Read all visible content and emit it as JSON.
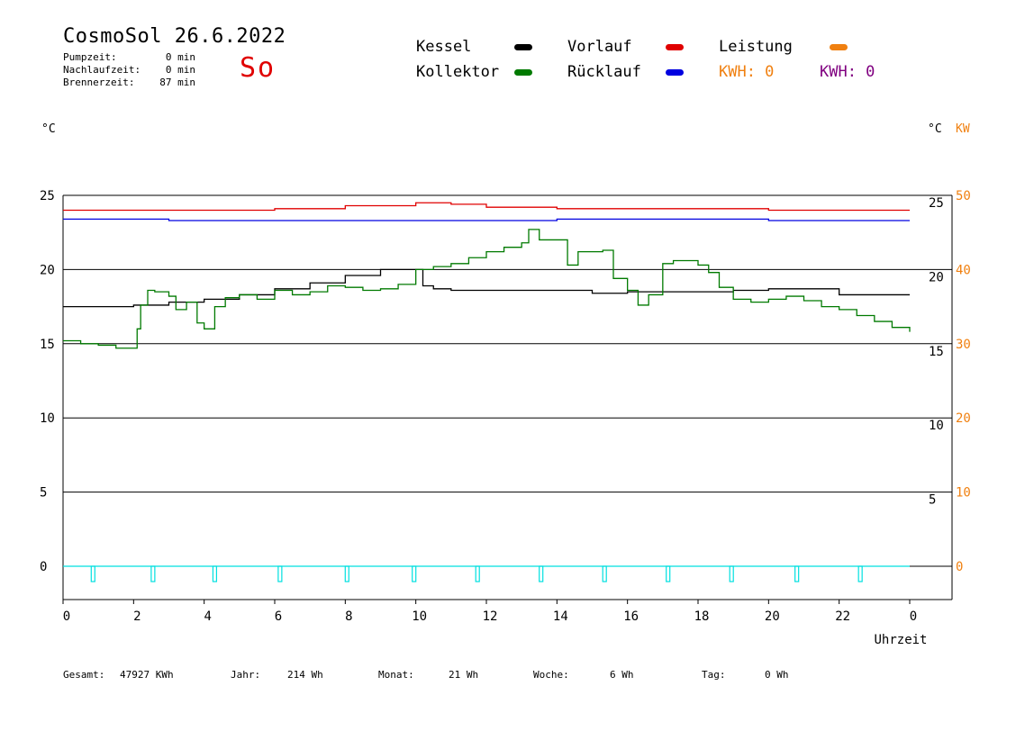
{
  "header": {
    "title": "CosmoSol 26.6.2022",
    "day": "So",
    "stats": [
      {
        "label": "Pumpzeit:",
        "value": "0 min"
      },
      {
        "label": "Nachlaufzeit:",
        "value": "0 min"
      },
      {
        "label": "Brennerzeit:",
        "value": "87 min"
      }
    ]
  },
  "legend": {
    "kessel": "Kessel",
    "kollektor": "Kollektor",
    "vorlauf": "Vorlauf",
    "ruecklauf": "Rücklauf",
    "leistung": "Leistung",
    "kwh1": "KWH: 0",
    "kwh2": "KWH: 0"
  },
  "units": {
    "left": "°C",
    "right": "°C",
    "right_kw": "KW"
  },
  "footer": {
    "gesamt_label": "Gesamt:",
    "gesamt_value": "47927 KWh",
    "jahr_label": "Jahr:",
    "jahr_value": "214 Wh",
    "monat_label": "Monat:",
    "monat_value": "21 Wh",
    "woche_label": "Woche:",
    "woche_value": "6 Wh",
    "tag_label": "Tag:",
    "tag_value": "0 Wh"
  },
  "colors": {
    "kessel": "#000000",
    "kollektor": "#007a00",
    "vorlauf": "#e00000",
    "ruecklauf": "#0000e0",
    "leistung": "#f08010",
    "kwh2": "#800080",
    "pump": "#00e0e0"
  },
  "chart_data": {
    "type": "line",
    "xlabel": "Uhrzeit",
    "x_ticks": [
      "0",
      "2",
      "4",
      "6",
      "8",
      "10",
      "12",
      "14",
      "16",
      "18",
      "20",
      "22",
      "0"
    ],
    "xlim": [
      0,
      24
    ],
    "ylim": [
      -3,
      26
    ],
    "y_ticks_left": [
      0,
      5,
      10,
      15,
      20,
      25
    ],
    "y_ticks_right": [
      5,
      10,
      15,
      20,
      25
    ],
    "y_ticks_kw": [
      0,
      10,
      20,
      30,
      40,
      50
    ],
    "grid": "horizontal",
    "series": [
      {
        "name": "Vorlauf",
        "color": "#e00000",
        "x": [
          0,
          3,
          6,
          8,
          10,
          11,
          12,
          14,
          16,
          18,
          20,
          22,
          24
        ],
        "y": [
          24.0,
          24.0,
          24.1,
          24.3,
          24.5,
          24.4,
          24.2,
          24.1,
          24.1,
          24.1,
          24.0,
          24.0,
          24.0
        ]
      },
      {
        "name": "Rücklauf",
        "color": "#0000e0",
        "x": [
          0,
          3,
          6,
          8,
          10,
          12,
          14,
          16,
          18,
          20,
          22,
          24
        ],
        "y": [
          23.4,
          23.3,
          23.3,
          23.3,
          23.3,
          23.3,
          23.4,
          23.4,
          23.4,
          23.3,
          23.3,
          23.3
        ]
      },
      {
        "name": "Kessel",
        "color": "#000000",
        "x": [
          0,
          1,
          2,
          3,
          4,
          5,
          6,
          7,
          8,
          9,
          9.9,
          10.2,
          10.5,
          11,
          12,
          13,
          14,
          15,
          16,
          17,
          18,
          19,
          20,
          21,
          22,
          23,
          24
        ],
        "y": [
          17.5,
          17.5,
          17.6,
          17.8,
          18.0,
          18.3,
          18.7,
          19.1,
          19.6,
          20.0,
          20.0,
          18.9,
          18.7,
          18.6,
          18.6,
          18.6,
          18.6,
          18.4,
          18.5,
          18.5,
          18.5,
          18.6,
          18.7,
          18.7,
          18.3,
          18.3,
          18.3
        ]
      },
      {
        "name": "Kollektor",
        "color": "#007a00",
        "x": [
          0,
          0.5,
          1,
          1.5,
          2,
          2.1,
          2.2,
          2.4,
          2.6,
          3,
          3.2,
          3.5,
          3.8,
          4,
          4.3,
          4.6,
          5,
          5.5,
          6,
          6.5,
          7,
          7.5,
          8,
          8.5,
          9,
          9.5,
          10,
          10.5,
          11,
          11.5,
          12,
          12.5,
          13,
          13.2,
          13.5,
          14,
          14.3,
          14.6,
          15,
          15.3,
          15.6,
          16,
          16.3,
          16.6,
          17,
          17.3,
          17.6,
          18,
          18.3,
          18.6,
          19,
          19.5,
          20,
          20.5,
          21,
          21.5,
          22,
          22.5,
          23,
          23.5,
          24
        ],
        "y": [
          15.2,
          15.0,
          14.9,
          14.7,
          14.7,
          16.0,
          17.6,
          18.6,
          18.5,
          18.2,
          17.3,
          17.8,
          16.4,
          16.0,
          17.5,
          18.1,
          18.3,
          18.0,
          18.6,
          18.3,
          18.5,
          18.9,
          18.8,
          18.6,
          18.7,
          19.0,
          20.0,
          20.2,
          20.4,
          20.8,
          21.2,
          21.5,
          21.8,
          22.7,
          22.0,
          22.0,
          20.3,
          21.2,
          21.2,
          21.3,
          19.4,
          18.6,
          17.6,
          18.3,
          20.4,
          20.6,
          20.6,
          20.3,
          19.8,
          18.8,
          18.0,
          17.8,
          18.0,
          18.2,
          17.9,
          17.5,
          17.3,
          16.9,
          16.5,
          16.1,
          15.8
        ]
      },
      {
        "name": "Pumpe",
        "color": "#00e0e0",
        "x": [
          0,
          24
        ],
        "y": [
          0,
          0
        ]
      }
    ],
    "pump_markers_x": [
      0.85,
      2.55,
      4.3,
      6.15,
      8.05,
      9.95,
      11.75,
      13.55,
      15.35,
      17.15,
      18.95,
      20.8,
      22.6
    ]
  }
}
